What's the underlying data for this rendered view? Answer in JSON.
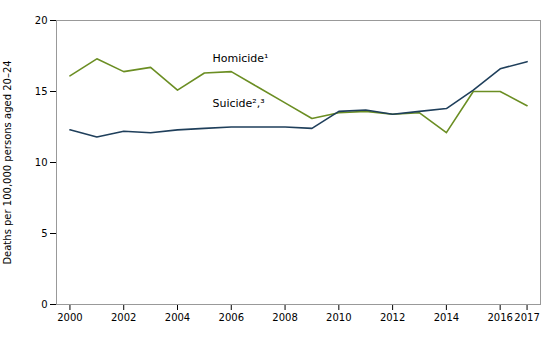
{
  "chart_data": {
    "type": "line",
    "x": [
      2000,
      2001,
      2002,
      2003,
      2004,
      2005,
      2006,
      2007,
      2008,
      2009,
      2010,
      2011,
      2012,
      2013,
      2014,
      2015,
      2016,
      2017
    ],
    "series": [
      {
        "name": "Homicide¹",
        "color": "#6b8e23",
        "values": [
          16.1,
          17.3,
          16.4,
          16.7,
          15.1,
          16.3,
          16.4,
          15.3,
          14.2,
          13.1,
          13.5,
          13.6,
          13.4,
          13.5,
          12.1,
          15.0,
          15.0,
          14.0
        ]
      },
      {
        "name": "Suicide²,³",
        "color": "#1f3f5b",
        "values": [
          12.3,
          11.8,
          12.2,
          12.1,
          12.3,
          12.4,
          12.5,
          12.5,
          12.5,
          12.4,
          13.6,
          13.7,
          13.4,
          13.6,
          13.8,
          15.1,
          16.6,
          17.1
        ]
      }
    ],
    "annotations": [
      {
        "text": "Homicide¹",
        "x": 2005.3,
        "y": 17.1
      },
      {
        "text": "Suicide²,³",
        "x": 2005.3,
        "y": 13.9
      }
    ],
    "ylabel": "Deaths per 100,000 persons aged 20–24",
    "xlim": [
      1999.5,
      2017.5
    ],
    "xticks": [
      2000,
      2002,
      2004,
      2006,
      2008,
      2010,
      2012,
      2014,
      2016,
      2017
    ],
    "ylim": [
      0,
      20
    ],
    "yticks": [
      0,
      5,
      10,
      15,
      20
    ],
    "grid": false
  }
}
